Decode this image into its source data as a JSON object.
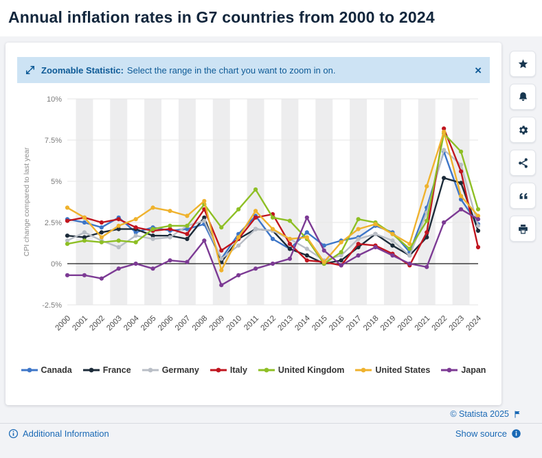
{
  "page": {
    "title": "Annual inflation rates in G7 countries from 2000 to 2024"
  },
  "banner": {
    "bold_label": "Zoomable Statistic:",
    "rest_label": "Select the range in the chart you want to zoom in on.",
    "close_label": "×",
    "icon": "zoom-expand-icon"
  },
  "toolbar": {
    "buttons": [
      {
        "name": "favorite",
        "icon": "star-icon"
      },
      {
        "name": "alert",
        "icon": "bell-icon"
      },
      {
        "name": "settings",
        "icon": "gear-icon"
      },
      {
        "name": "share",
        "icon": "share-icon"
      },
      {
        "name": "cite",
        "icon": "quote-icon"
      },
      {
        "name": "print",
        "icon": "print-icon"
      }
    ]
  },
  "chart_data": {
    "type": "line",
    "title": "Annual inflation rates in G7 countries from 2000 to 2024",
    "xlabel": "",
    "ylabel": "CPI change compared to last year",
    "ylim": [
      -2.5,
      10
    ],
    "y_grid_values": [
      10,
      7.5,
      5,
      2.5,
      0,
      -2.5
    ],
    "y_tick_labels": [
      "10%",
      "7.5%",
      "5%",
      "2.5%",
      "0%",
      "-2.5%"
    ],
    "grid": true,
    "legend_position": "bottom",
    "categories": [
      "2000",
      "2001",
      "2002",
      "2003",
      "2004",
      "2005",
      "2006",
      "2007",
      "2008",
      "2009",
      "2010",
      "2011",
      "2012",
      "2013",
      "2014",
      "2015",
      "2016",
      "2017",
      "2018",
      "2019",
      "2020",
      "2021",
      "2022",
      "2023",
      "2024"
    ],
    "series": [
      {
        "name": "Canada",
        "color": "#3d76c8",
        "values": [
          2.7,
          2.5,
          2.2,
          2.8,
          1.9,
          2.2,
          2.0,
          2.1,
          2.4,
          0.3,
          1.8,
          2.9,
          1.5,
          0.9,
          1.9,
          1.1,
          1.4,
          1.6,
          2.3,
          1.9,
          0.7,
          3.4,
          6.8,
          3.9,
          2.4
        ]
      },
      {
        "name": "France",
        "color": "#1c2b39",
        "values": [
          1.7,
          1.6,
          1.9,
          2.1,
          2.1,
          1.7,
          1.7,
          1.5,
          2.8,
          0.1,
          1.5,
          2.1,
          2.0,
          0.9,
          0.5,
          0.0,
          0.2,
          1.0,
          1.8,
          1.1,
          0.5,
          1.6,
          5.2,
          4.9,
          2.0
        ]
      },
      {
        "name": "Germany",
        "color": "#b9bec6",
        "values": [
          1.4,
          1.9,
          1.4,
          1.0,
          1.7,
          1.5,
          1.6,
          2.3,
          2.6,
          0.3,
          1.1,
          2.1,
          2.0,
          1.5,
          0.9,
          0.2,
          0.5,
          1.5,
          1.8,
          1.4,
          0.5,
          3.1,
          6.9,
          6.0,
          2.3
        ]
      },
      {
        "name": "Italy",
        "color": "#c0151f",
        "values": [
          2.6,
          2.8,
          2.5,
          2.7,
          2.2,
          2.0,
          2.1,
          1.8,
          3.3,
          0.8,
          1.5,
          2.8,
          3.0,
          1.2,
          0.2,
          0.1,
          -0.1,
          1.2,
          1.1,
          0.6,
          -0.1,
          1.9,
          8.2,
          5.6,
          1.0
        ]
      },
      {
        "name": "United Kingdom",
        "color": "#8ebf25",
        "values": [
          1.2,
          1.4,
          1.3,
          1.4,
          1.3,
          2.1,
          2.3,
          2.3,
          3.6,
          2.2,
          3.3,
          4.5,
          2.8,
          2.6,
          1.5,
          0.0,
          0.7,
          2.7,
          2.5,
          1.8,
          0.9,
          2.6,
          7.9,
          6.8,
          3.3
        ]
      },
      {
        "name": "United States",
        "color": "#efb22d",
        "values": [
          3.4,
          2.8,
          1.6,
          2.3,
          2.7,
          3.4,
          3.2,
          2.9,
          3.8,
          -0.4,
          1.6,
          3.2,
          2.1,
          1.5,
          1.6,
          0.1,
          1.3,
          2.1,
          2.4,
          1.8,
          1.2,
          4.7,
          8.0,
          4.1,
          2.9
        ]
      },
      {
        "name": "Japan",
        "color": "#7c3a94",
        "values": [
          -0.7,
          -0.7,
          -0.9,
          -0.3,
          0.0,
          -0.3,
          0.2,
          0.1,
          1.4,
          -1.3,
          -0.7,
          -0.3,
          0.0,
          0.3,
          2.8,
          0.8,
          -0.1,
          0.5,
          1.0,
          0.5,
          0.0,
          -0.2,
          2.5,
          3.3,
          2.7
        ]
      }
    ]
  },
  "footer": {
    "additional_info_label": "Additional Information",
    "copyright_label": "© Statista 2025",
    "show_source_label": "Show source"
  },
  "colors": {
    "banner_bg": "#cde3f4",
    "banner_text": "#0d5a96",
    "link_blue": "#1a69b5",
    "title_navy": "#12263c",
    "zero_line": "#1a1a1a",
    "grid_line": "#e6e6e6",
    "band_gray": "#ededee"
  }
}
